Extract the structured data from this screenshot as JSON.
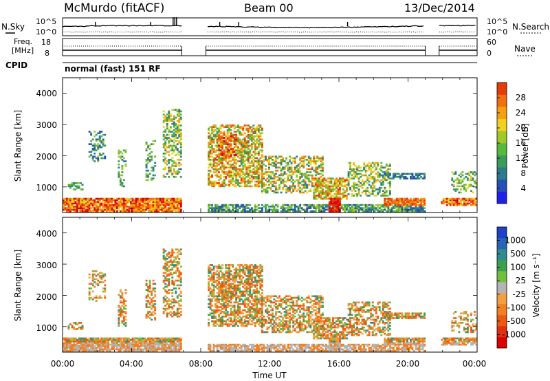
{
  "header": {
    "station": "McMurdo (fitACF)",
    "beam": "Beam 00",
    "date": "13/Dec/2014"
  },
  "noise_panel": {
    "left_label": "N.Sky",
    "right_label": "N.Search",
    "left_ticks": [
      "10^5",
      "10^0"
    ],
    "right_ticks": [
      "10^5",
      "10^0"
    ]
  },
  "freq_panel": {
    "left_label_1": "Freq.",
    "left_label_2": "[MHz]",
    "right_label": "Nave",
    "left_ticks": [
      "18",
      "8"
    ],
    "right_ticks": [
      "60",
      "0"
    ],
    "cpid_label": "CPID",
    "mode": "normal (fast) 151 RF"
  },
  "time_axis": {
    "label": "Time UT",
    "ticks": [
      "00:00",
      "04:00",
      "08:00",
      "12:00",
      "16:00",
      "20:00",
      "00:00"
    ]
  },
  "power_panel": {
    "ylabel": "Slant Range [km]",
    "yticks": [
      "4000",
      "3000",
      "2000",
      "1000"
    ],
    "colorbar_label": "Power [dB]",
    "colorbar_ticks": [
      "28",
      "24",
      "20",
      "16",
      "12",
      "8",
      "4"
    ],
    "colors": [
      "#2020e6",
      "#2850b4",
      "#2d7a8c",
      "#3c9a5a",
      "#56b83c",
      "#a0c828",
      "#f0d020",
      "#f5a010",
      "#f07010",
      "#e63c0a",
      "#dc0000"
    ]
  },
  "velocity_panel": {
    "ylabel": "Slant Range [km]",
    "yticks": [
      "4000",
      "3000",
      "2000",
      "1000"
    ],
    "colorbar_label": "Velocity [m s⁻¹]",
    "colorbar_ticks": [
      "1000",
      "500",
      "100",
      "25",
      "-25",
      "-100",
      "-500",
      "-1000"
    ],
    "colors": [
      "#2040c8",
      "#2a64b4",
      "#2e8c8c",
      "#3ca050",
      "#70c040",
      "#b4b4b4",
      "#f0a040",
      "#f08020",
      "#ec5a10",
      "#e03010",
      "#d80000"
    ]
  },
  "chart_data": {
    "type": "heatmap",
    "x_range_hours": [
      0,
      24
    ],
    "y_range_km": [
      180,
      4500
    ],
    "data_gaps_hours": [
      [
        6.9,
        8.3
      ],
      [
        21.0,
        21.8
      ]
    ]
  }
}
